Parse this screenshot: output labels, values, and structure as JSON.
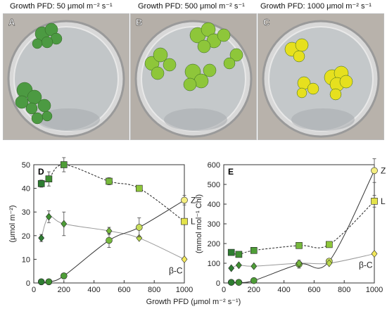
{
  "photos": [
    {
      "letter": "A",
      "title": "Growth PFD: 50 μmol m⁻² s⁻¹",
      "frond_color": "#4c9a42"
    },
    {
      "letter": "B",
      "title": "Growth PFD: 500 μmol m⁻² s⁻¹",
      "frond_color": "#8ec63a"
    },
    {
      "letter": "C",
      "title": "Growth PFD: 1000 μmol m⁻² s⁻¹",
      "frond_color": "#e6e01e"
    }
  ],
  "xlabel": "Growth PFD (μmol m⁻² s⁻¹)",
  "chart_data": [
    {
      "panel": "D",
      "type": "scatter",
      "ylabel": "(μmol m⁻²)",
      "xlim": [
        0,
        1000
      ],
      "ylim": [
        0,
        50
      ],
      "xticks": [
        "0",
        "200",
        "400",
        "600",
        "800",
        "1000"
      ],
      "yticks": [
        "0",
        "10",
        "20",
        "30",
        "40",
        "50"
      ],
      "series": [
        {
          "name": "L",
          "marker": "square",
          "color": "#5fae3e",
          "line": "dashed",
          "x": [
            50,
            100,
            200,
            500,
            700,
            1000
          ],
          "y": [
            42,
            44,
            50,
            43,
            40,
            26
          ],
          "err": [
            1.5,
            3,
            3,
            1.5,
            0,
            0
          ],
          "fill_gradient": [
            "#2e7d32",
            "#3f8f32",
            "#4e9d37",
            "#76b83c",
            "#8ec63a",
            "#e3e24a"
          ]
        },
        {
          "name": "β-C",
          "marker": "diamond",
          "color": "#5fae3e",
          "line": "solid-gray",
          "x": [
            50,
            100,
            200,
            500,
            700,
            1000
          ],
          "y": [
            19,
            28,
            25,
            22,
            19,
            10
          ],
          "err": [
            1.5,
            2.5,
            5,
            1.5,
            0,
            0
          ],
          "fill_gradient": [
            "#2e7d32",
            "#3f8f32",
            "#4e9d37",
            "#76b83c",
            "#b8d84a",
            "#f2e85a"
          ]
        },
        {
          "name": "Z",
          "marker": "circle",
          "color": "#5fae3e",
          "line": "solid-dark",
          "x": [
            50,
            100,
            200,
            500,
            700,
            1000
          ],
          "y": [
            0.5,
            0.5,
            3,
            18,
            23.5,
            35
          ],
          "err": [
            0,
            0,
            0,
            3,
            4,
            2
          ],
          "fill_gradient": [
            "#2e7d32",
            "#3f8f32",
            "#4e9d37",
            "#76b83c",
            "#c7dc5a",
            "#f4ee80"
          ]
        }
      ]
    },
    {
      "panel": "E",
      "type": "scatter",
      "ylabel": "(mmol mol⁻¹ Chl)",
      "xlim": [
        0,
        1000
      ],
      "ylim": [
        0,
        600
      ],
      "xticks": [
        "0",
        "200",
        "400",
        "600",
        "800",
        "1000"
      ],
      "yticks": [
        "0",
        "100",
        "200",
        "300",
        "400",
        "500",
        "600"
      ],
      "series": [
        {
          "name": "Z",
          "marker": "circle",
          "color": "#5fae3e",
          "line": "solid-dark",
          "x": [
            50,
            100,
            200,
            500,
            700,
            1000
          ],
          "y": [
            3,
            3,
            12,
            95,
            110,
            570
          ],
          "err": [
            0,
            0,
            0,
            20,
            0,
            60
          ],
          "fill_gradient": [
            "#2e7d32",
            "#3f8f32",
            "#4e9d37",
            "#76b83c",
            "#c7dc5a",
            "#f4ee80"
          ]
        },
        {
          "name": "L",
          "marker": "square",
          "color": "#5fae3e",
          "line": "dashed",
          "x": [
            50,
            100,
            200,
            500,
            700,
            1000
          ],
          "y": [
            155,
            145,
            165,
            190,
            195,
            415
          ],
          "err": [
            0,
            0,
            15,
            0,
            0,
            30
          ],
          "fill_gradient": [
            "#2e7d32",
            "#3f8f32",
            "#4e9d37",
            "#76b83c",
            "#8ec63a",
            "#e3e24a"
          ]
        },
        {
          "name": "β-C",
          "marker": "diamond",
          "color": "#5fae3e",
          "line": "solid-gray",
          "x": [
            50,
            100,
            200,
            500,
            700,
            1000
          ],
          "y": [
            75,
            90,
            85,
            100,
            100,
            148
          ],
          "err": [
            0,
            0,
            0,
            0,
            0,
            0
          ],
          "fill_gradient": [
            "#2e7d32",
            "#3f8f32",
            "#4e9d37",
            "#76b83c",
            "#b8d84a",
            "#f2e85a"
          ]
        }
      ]
    }
  ]
}
